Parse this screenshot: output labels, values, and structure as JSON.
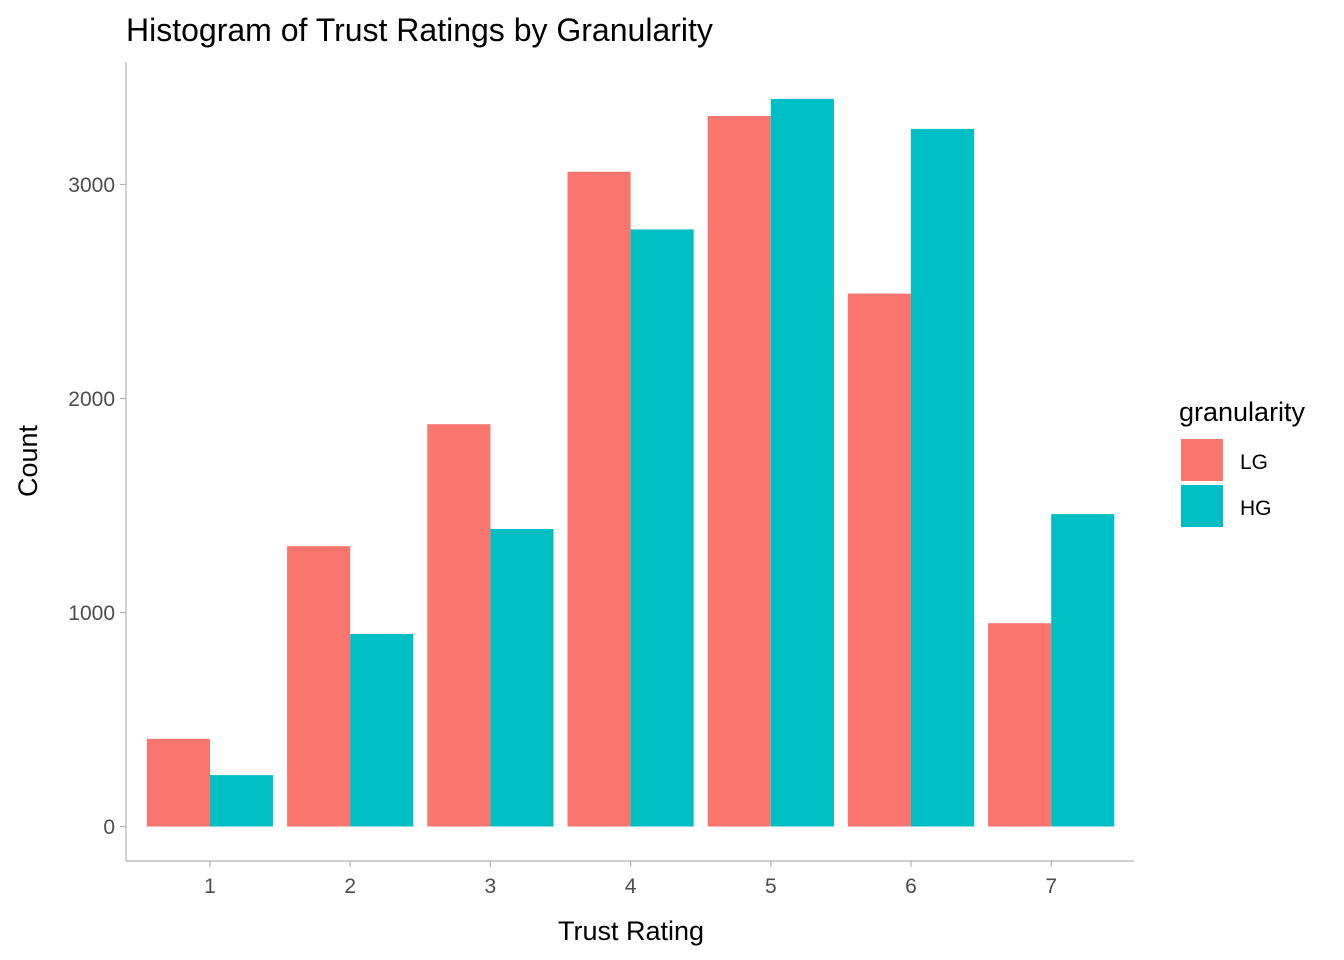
{
  "chart_data": {
    "type": "bar",
    "title": "Histogram of Trust Ratings by Granularity",
    "xlabel": "Trust Rating",
    "ylabel": "Count",
    "categories": [
      "1",
      "2",
      "3",
      "4",
      "5",
      "6",
      "7"
    ],
    "yticks": [
      0,
      1000,
      2000,
      3000
    ],
    "ylim": [
      0,
      3400
    ],
    "grid": false,
    "legend": {
      "title": "granularity",
      "placement": "right"
    },
    "series": [
      {
        "name": "LG",
        "color": "#F8766D",
        "values": [
          410,
          1310,
          1880,
          3060,
          3320,
          2490,
          950
        ]
      },
      {
        "name": "HG",
        "color": "#00BFC4",
        "values": [
          240,
          900,
          1390,
          2790,
          3400,
          3260,
          1460
        ]
      }
    ]
  }
}
